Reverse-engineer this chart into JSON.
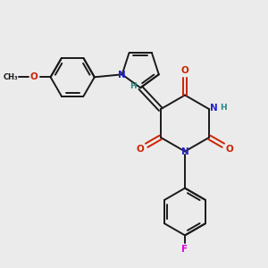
{
  "bg_color": "#ebebeb",
  "bond_color": "#1a1a1a",
  "N_color": "#2222cc",
  "O_color": "#cc2200",
  "F_color": "#dd00dd",
  "H_color": "#228888",
  "lw": 1.4,
  "fs": 7.5,
  "figsize": [
    3.0,
    3.0
  ],
  "dpi": 100,
  "xlim": [
    0,
    10
  ],
  "ylim": [
    0,
    10
  ]
}
